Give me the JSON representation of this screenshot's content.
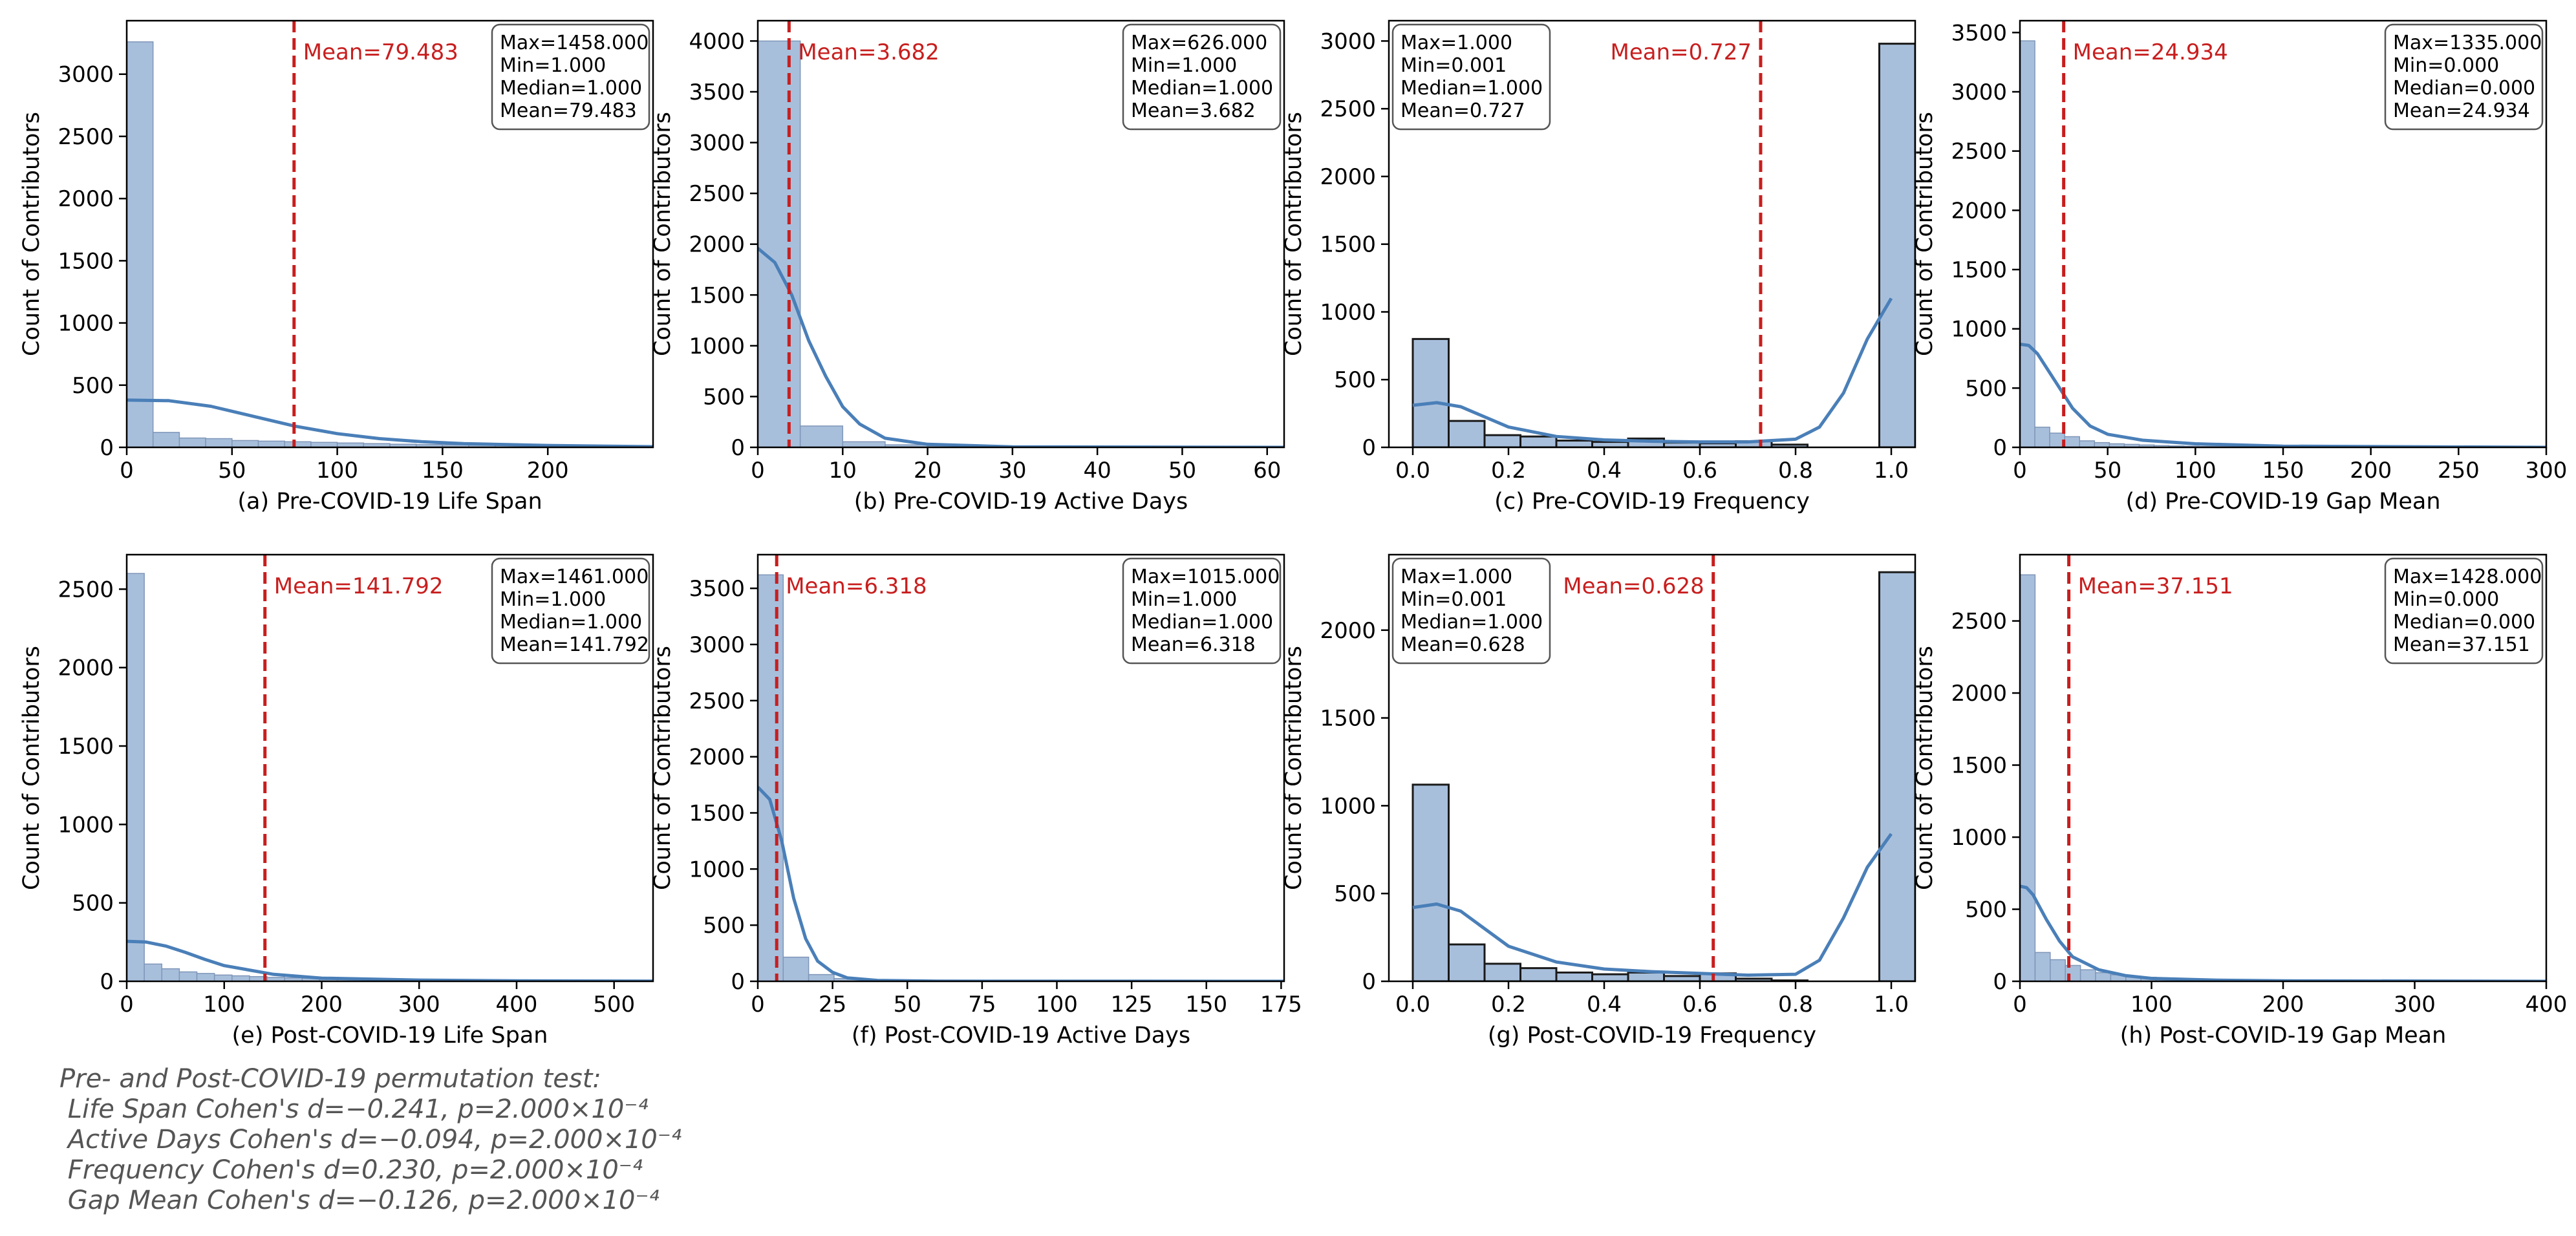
{
  "chart_data": [
    {
      "type": "bar",
      "title": "",
      "xlabel": "(a) Pre-COVID-19 Life Span",
      "ylabel": "Count of Contributors",
      "xlim": [
        0,
        250
      ],
      "ylim": [
        0,
        3430
      ],
      "xticks": [
        0,
        50,
        100,
        150,
        200
      ],
      "yticks": [
        0,
        500,
        1000,
        1500,
        2000,
        2500,
        3000
      ],
      "bins": {
        "start": 0,
        "width": 12.5,
        "counts": [
          3260,
          120,
          75,
          70,
          55,
          50,
          45,
          40,
          35,
          30,
          25,
          22,
          20,
          18,
          15,
          14,
          12,
          10,
          9,
          8
        ]
      },
      "kde": {
        "x": [
          0,
          20,
          40,
          60,
          80,
          100,
          120,
          140,
          160,
          200,
          250
        ],
        "y": [
          380,
          375,
          330,
          250,
          170,
          110,
          70,
          45,
          30,
          15,
          5
        ]
      },
      "mean_line": {
        "value": 79.483,
        "label": "Mean=79.483"
      },
      "stats": [
        "Max=1458.000",
        "Min=1.000",
        "Median=1.000",
        "Mean=79.483"
      ],
      "stats_position": "top-right",
      "mean_label_side": "right"
    },
    {
      "type": "bar",
      "title": "",
      "xlabel": "(b) Pre-COVID-19 Active Days",
      "ylabel": "Count of Contributors",
      "xlim": [
        0,
        62
      ],
      "ylim": [
        0,
        4200
      ],
      "xticks": [
        0,
        10,
        20,
        30,
        40,
        50,
        60
      ],
      "yticks": [
        0,
        500,
        1000,
        1500,
        2000,
        2500,
        3000,
        3500,
        4000
      ],
      "bins": {
        "start": 0,
        "width": 5,
        "counts": [
          4000,
          210,
          55,
          25,
          15,
          10,
          6,
          4,
          3,
          2,
          2,
          1
        ]
      },
      "kde": {
        "x": [
          0,
          2,
          4,
          6,
          8,
          10,
          12,
          15,
          20,
          30,
          62
        ],
        "y": [
          1960,
          1820,
          1500,
          1050,
          700,
          400,
          230,
          90,
          30,
          5,
          0
        ]
      },
      "mean_line": {
        "value": 3.682,
        "label": "Mean=3.682"
      },
      "stats": [
        "Max=626.000",
        "Min=1.000",
        "Median=1.000",
        "Mean=3.682"
      ],
      "stats_position": "top-right",
      "mean_label_side": "right"
    },
    {
      "type": "bar",
      "title": "",
      "xlabel": "(c) Pre-COVID-19 Frequency",
      "ylabel": "Count of Contributors",
      "xlim": [
        -0.05,
        1.05
      ],
      "ylim": [
        0,
        3150
      ],
      "xticks": [
        0.0,
        0.2,
        0.4,
        0.6,
        0.8,
        1.0
      ],
      "yticks": [
        0,
        500,
        1000,
        1500,
        2000,
        2500,
        3000
      ],
      "bins": {
        "start": 0,
        "width": 0.075,
        "counts": [
          800,
          195,
          90,
          80,
          50,
          40,
          65,
          35,
          30,
          45,
          20,
          0,
          0,
          2980
        ]
      },
      "kde": {
        "x": [
          0,
          0.05,
          0.1,
          0.2,
          0.3,
          0.4,
          0.5,
          0.6,
          0.7,
          0.8,
          0.85,
          0.9,
          0.95,
          1.0
        ],
        "y": [
          310,
          330,
          300,
          150,
          80,
          55,
          45,
          40,
          40,
          60,
          150,
          400,
          800,
          1100
        ]
      },
      "mean_line": {
        "value": 0.727,
        "label": "Mean=0.727"
      },
      "stats": [
        "Max=1.000",
        "Min=0.001",
        "Median=1.000",
        "Mean=0.727"
      ],
      "stats_position": "top-left",
      "mean_label_side": "left",
      "bar_style": "dark-edge"
    },
    {
      "type": "bar",
      "title": "",
      "xlabel": "(d) Pre-COVID-19 Gap Mean",
      "ylabel": "Count of Contributors",
      "xlim": [
        0,
        300
      ],
      "ylim": [
        0,
        3600
      ],
      "xticks": [
        0,
        50,
        100,
        150,
        200,
        250,
        300
      ],
      "yticks": [
        0,
        500,
        1000,
        1500,
        2000,
        2500,
        3000,
        3500
      ],
      "bins": {
        "start": 0,
        "width": 8.5,
        "counts": [
          3430,
          170,
          120,
          90,
          55,
          40,
          30,
          25,
          20,
          15,
          12,
          10,
          8,
          7,
          6,
          5
        ]
      },
      "kde": {
        "x": [
          0,
          5,
          10,
          20,
          30,
          40,
          50,
          70,
          100,
          150,
          300
        ],
        "y": [
          870,
          860,
          790,
          560,
          330,
          180,
          110,
          60,
          30,
          10,
          0
        ]
      },
      "mean_line": {
        "value": 24.934,
        "label": "Mean=24.934"
      },
      "stats": [
        "Max=1335.000",
        "Min=0.000",
        "Median=0.000",
        "Mean=24.934"
      ],
      "stats_position": "top-right",
      "mean_label_side": "right"
    },
    {
      "type": "bar",
      "title": "",
      "xlabel": "(e) Post-COVID-19 Life Span",
      "ylabel": "Count of Contributors",
      "xlim": [
        0,
        540
      ],
      "ylim": [
        0,
        2720
      ],
      "xticks": [
        0,
        100,
        200,
        300,
        400,
        500
      ],
      "yticks": [
        0,
        500,
        1000,
        1500,
        2000,
        2500
      ],
      "bins": {
        "start": 0,
        "width": 18,
        "counts": [
          2600,
          110,
          80,
          60,
          50,
          40,
          35,
          30,
          25,
          22,
          20,
          18,
          16,
          14,
          12,
          10,
          9,
          8,
          7,
          6
        ]
      },
      "kde": {
        "x": [
          0,
          20,
          40,
          60,
          80,
          100,
          150,
          200,
          300,
          400,
          540
        ],
        "y": [
          255,
          250,
          225,
          185,
          140,
          100,
          45,
          20,
          8,
          3,
          1
        ]
      },
      "mean_line": {
        "value": 141.792,
        "label": "Mean=141.792"
      },
      "stats": [
        "Max=1461.000",
        "Min=1.000",
        "Median=1.000",
        "Mean=141.792"
      ],
      "stats_position": "top-right",
      "mean_label_side": "right"
    },
    {
      "type": "bar",
      "title": "",
      "xlabel": "(f) Post-COVID-19 Active Days",
      "ylabel": "Count of Contributors",
      "xlim": [
        0,
        176
      ],
      "ylim": [
        0,
        3800
      ],
      "xticks": [
        0,
        25,
        50,
        75,
        100,
        125,
        150,
        175
      ],
      "yticks": [
        0,
        500,
        1000,
        1500,
        2000,
        2500,
        3000,
        3500
      ],
      "bins": {
        "start": 0,
        "width": 8.5,
        "counts": [
          3620,
          215,
          60,
          25,
          12,
          8,
          5,
          3,
          2,
          2
        ]
      },
      "kde": {
        "x": [
          0,
          4,
          8,
          12,
          16,
          20,
          25,
          30,
          40,
          60,
          176
        ],
        "y": [
          1730,
          1620,
          1250,
          740,
          380,
          180,
          80,
          30,
          8,
          1,
          0
        ]
      },
      "mean_line": {
        "value": 6.318,
        "label": "Mean=6.318"
      },
      "stats": [
        "Max=1015.000",
        "Min=1.000",
        "Median=1.000",
        "Mean=6.318"
      ],
      "stats_position": "top-right",
      "mean_label_side": "right"
    },
    {
      "type": "bar",
      "title": "",
      "xlabel": "(g) Post-COVID-19 Frequency",
      "ylabel": "Count of Contributors",
      "xlim": [
        -0.05,
        1.05
      ],
      "ylim": [
        0,
        2430
      ],
      "xticks": [
        0.0,
        0.2,
        0.4,
        0.6,
        0.8,
        1.0
      ],
      "yticks": [
        0,
        500,
        1000,
        1500,
        2000
      ],
      "bins": {
        "start": 0,
        "width": 0.075,
        "counts": [
          1120,
          210,
          100,
          75,
          50,
          40,
          50,
          30,
          45,
          15,
          5,
          0,
          0,
          2330
        ]
      },
      "kde": {
        "x": [
          0,
          0.05,
          0.1,
          0.2,
          0.3,
          0.4,
          0.5,
          0.6,
          0.7,
          0.8,
          0.85,
          0.9,
          0.95,
          1.0
        ],
        "y": [
          420,
          440,
          400,
          200,
          110,
          70,
          55,
          45,
          35,
          40,
          120,
          360,
          650,
          840
        ]
      },
      "mean_line": {
        "value": 0.628,
        "label": "Mean=0.628"
      },
      "stats": [
        "Max=1.000",
        "Min=0.001",
        "Median=1.000",
        "Mean=0.628"
      ],
      "stats_position": "top-left",
      "mean_label_side": "left",
      "bar_style": "dark-edge"
    },
    {
      "type": "bar",
      "title": "",
      "xlabel": "(h) Post-COVID-19 Gap Mean",
      "ylabel": "Count of Contributors",
      "xlim": [
        0,
        400
      ],
      "ylim": [
        0,
        2960
      ],
      "xticks": [
        0,
        100,
        200,
        300,
        400
      ],
      "yticks": [
        0,
        500,
        1000,
        1500,
        2000,
        2500
      ],
      "bins": {
        "start": 0,
        "width": 11.5,
        "counts": [
          2820,
          200,
          150,
          110,
          80,
          60,
          45,
          35,
          28,
          22,
          18,
          15,
          12,
          10,
          8,
          6
        ]
      },
      "kde": {
        "x": [
          0,
          5,
          10,
          20,
          30,
          40,
          60,
          80,
          100,
          150,
          200,
          400
        ],
        "y": [
          660,
          650,
          600,
          430,
          280,
          170,
          80,
          40,
          20,
          8,
          3,
          0
        ]
      },
      "mean_line": {
        "value": 37.151,
        "label": "Mean=37.151"
      },
      "stats": [
        "Max=1428.000",
        "Min=0.000",
        "Median=0.000",
        "Mean=37.151"
      ],
      "stats_position": "top-right",
      "mean_label_side": "right"
    }
  ],
  "footnote": {
    "lines": [
      "Pre- and Post-COVID-19 permutation test:",
      " Life Span Cohen's d=−0.241, p=2.000×10⁻⁴",
      " Active Days Cohen's d=−0.094, p=2.000×10⁻⁴",
      " Frequency Cohen's d=0.230, p=2.000×10⁻⁴",
      " Gap Mean Cohen's d=−0.126, p=2.000×10⁻⁴"
    ]
  },
  "colors": {
    "bar_fill": "#a8bfdc",
    "bar_edge_light": "#7f96b8",
    "bar_edge_dark": "#1a1a1a",
    "kde_line": "#4a7fb8",
    "mean_line": "#c81e1e",
    "text": "#000000",
    "note_text": "#555555"
  }
}
